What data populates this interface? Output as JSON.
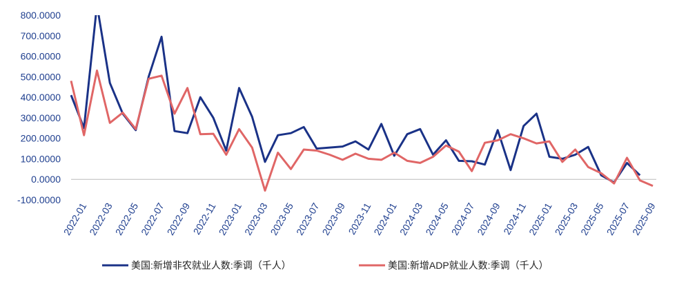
{
  "chart_data": {
    "type": "line",
    "categories": [
      null,
      "2022-01",
      null,
      "2022-03",
      null,
      "2022-05",
      null,
      "2022-07",
      null,
      "2022-09",
      null,
      "2022-11",
      null,
      "2023-01",
      null,
      "2023-03",
      null,
      "2023-05",
      null,
      "2023-07",
      null,
      "2023-09",
      null,
      "2023-11",
      null,
      "2024-01",
      null,
      "2024-03",
      null,
      "2024-05",
      null,
      "2024-07",
      null,
      "2024-09",
      null,
      "2024-11",
      null,
      "2025-01",
      null,
      "2025-03",
      null,
      "2025-05",
      null,
      "2025-07",
      null,
      "2025-09"
    ],
    "series": [
      {
        "name": "美国:新增非农就业人数:季调（千人）",
        "color": "#1a3287",
        "values": [
          410,
          250,
          850,
          470,
          320,
          240,
          500,
          695,
          235,
          225,
          400,
          300,
          140,
          445,
          305,
          85,
          215,
          225,
          255,
          150,
          155,
          160,
          185,
          145,
          270,
          115,
          220,
          245,
          120,
          190,
          90,
          88,
          72,
          240,
          45,
          260,
          320,
          110,
          100,
          120,
          158,
          20,
          -15,
          80,
          20,
          null
        ]
      },
      {
        "name": "美国:新增ADP就业人数:季调（千人）",
        "color": "#e06666",
        "values": [
          480,
          215,
          530,
          275,
          325,
          245,
          490,
          505,
          320,
          445,
          220,
          222,
          120,
          245,
          155,
          -55,
          130,
          50,
          145,
          140,
          120,
          95,
          125,
          100,
          95,
          130,
          90,
          80,
          110,
          165,
          135,
          40,
          178,
          190,
          220,
          200,
          175,
          185,
          85,
          145,
          60,
          30,
          -20,
          105,
          -5,
          -32
        ]
      }
    ],
    "ylim": [
      -100,
      800
    ],
    "yticks": [
      {
        "value": -100,
        "label": "-100.0000"
      },
      {
        "value": 0,
        "label": "0.0000"
      },
      {
        "value": 100,
        "label": "100.0000"
      },
      {
        "value": 200,
        "label": "200.0000"
      },
      {
        "value": 300,
        "label": "300.0000"
      },
      {
        "value": 400,
        "label": "400.0000"
      },
      {
        "value": 500,
        "label": "500.0000"
      },
      {
        "value": 600,
        "label": "600.0000"
      },
      {
        "value": 700,
        "label": "700.0000"
      },
      {
        "value": 800,
        "label": "800.0000"
      }
    ],
    "grid": false
  }
}
